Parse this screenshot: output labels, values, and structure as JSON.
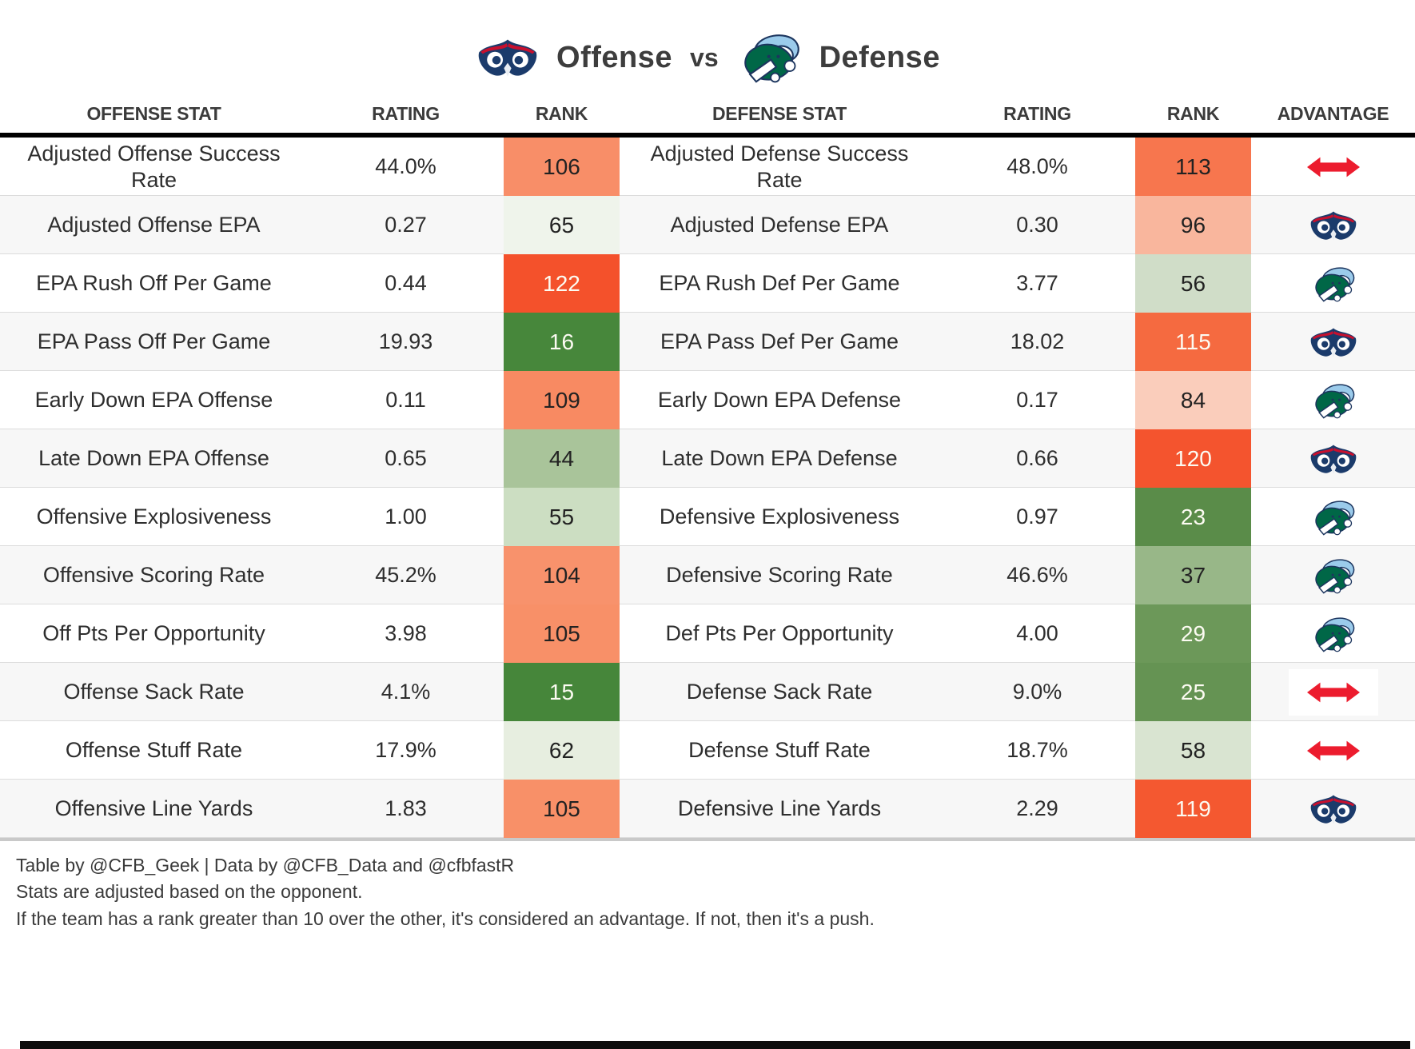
{
  "title": {
    "left_team": "FAU Owls",
    "left_label": "Offense",
    "vs_label": "vs",
    "right_team": "Tulane Green Wave",
    "right_label": "Defense"
  },
  "chart_data": {
    "type": "table",
    "title": "FAU Offense vs Tulane Defense",
    "columns": [
      "OFFENSE STAT",
      "RATING",
      "RANK",
      "DEFENSE STAT",
      "RATING",
      "RANK",
      "ADVANTAGE"
    ],
    "rows": [
      {
        "offense_stat": "Adjusted Offense Success Rate",
        "offense_rating": "44.0%",
        "offense_rank": "106",
        "offense_rank_bg": "#F88E68",
        "offense_rank_fg": "#222222",
        "defense_stat": "Adjusted Defense Success Rate",
        "defense_rating": "48.0%",
        "defense_rank": "113",
        "defense_rank_bg": "#F7764E",
        "defense_rank_fg": "#222222",
        "advantage": "push",
        "advantage_label": "Push"
      },
      {
        "offense_stat": "Adjusted Offense EPA",
        "offense_rating": "0.27",
        "offense_rank": "65",
        "offense_rank_bg": "#EFF4EB",
        "offense_rank_fg": "#222222",
        "defense_stat": "Adjusted Defense EPA",
        "defense_rating": "0.30",
        "defense_rank": "96",
        "defense_rank_bg": "#F9B69D",
        "defense_rank_fg": "#222222",
        "advantage": "fau",
        "advantage_label": "FAU Owls"
      },
      {
        "offense_stat": "EPA Rush Off Per Game",
        "offense_rating": "0.44",
        "offense_rank": "122",
        "offense_rank_bg": "#F4512B",
        "offense_rank_fg": "#FCFBF2",
        "defense_stat": "EPA Rush Def Per Game",
        "defense_rating": "3.77",
        "defense_rank": "56",
        "defense_rank_bg": "#D0DDC8",
        "defense_rank_fg": "#222222",
        "advantage": "tulane",
        "advantage_label": "Tulane Green Wave"
      },
      {
        "offense_stat": "EPA Pass Off Per Game",
        "offense_rating": "19.93",
        "offense_rank": "16",
        "offense_rank_bg": "#47873B",
        "offense_rank_fg": "#FCFBF2",
        "defense_stat": "EPA Pass Def Per Game",
        "defense_rating": "18.02",
        "defense_rank": "115",
        "defense_rank_bg": "#F56A40",
        "defense_rank_fg": "#FCFBF2",
        "advantage": "fau",
        "advantage_label": "FAU Owls"
      },
      {
        "offense_stat": "Early Down EPA Offense",
        "offense_rating": "0.11",
        "offense_rank": "109",
        "offense_rank_bg": "#F88A62",
        "offense_rank_fg": "#222222",
        "defense_stat": "Early Down EPA Defense",
        "defense_rating": "0.17",
        "defense_rank": "84",
        "defense_rank_bg": "#FACDBB",
        "defense_rank_fg": "#222222",
        "advantage": "tulane",
        "advantage_label": "Tulane Green Wave"
      },
      {
        "offense_stat": "Late Down EPA Offense",
        "offense_rating": "0.65",
        "offense_rank": "44",
        "offense_rank_bg": "#A9C49A",
        "offense_rank_fg": "#222222",
        "defense_stat": "Late Down EPA Defense",
        "defense_rating": "0.66",
        "defense_rank": "120",
        "defense_rank_bg": "#F4542E",
        "defense_rank_fg": "#FCFBF2",
        "advantage": "fau",
        "advantage_label": "FAU Owls"
      },
      {
        "offense_stat": "Offensive Explosiveness",
        "offense_rating": "1.00",
        "offense_rank": "55",
        "offense_rank_bg": "#CCDEC2",
        "offense_rank_fg": "#222222",
        "defense_stat": "Defensive Explosiveness",
        "defense_rating": "0.97",
        "defense_rank": "23",
        "defense_rank_bg": "#5A8C49",
        "defense_rank_fg": "#FCFBF2",
        "advantage": "tulane",
        "advantage_label": "Tulane Green Wave"
      },
      {
        "offense_stat": "Offensive Scoring Rate",
        "offense_rating": "45.2%",
        "offense_rank": "104",
        "offense_rank_bg": "#F8926C",
        "offense_rank_fg": "#222222",
        "defense_stat": "Defensive Scoring Rate",
        "defense_rating": "46.6%",
        "defense_rank": "37",
        "defense_rank_bg": "#98B788",
        "defense_rank_fg": "#222222",
        "advantage": "tulane",
        "advantage_label": "Tulane Green Wave"
      },
      {
        "offense_stat": "Off Pts Per Opportunity",
        "offense_rating": "3.98",
        "offense_rank": "105",
        "offense_rank_bg": "#F89068",
        "offense_rank_fg": "#222222",
        "defense_stat": "Def Pts Per Opportunity",
        "defense_rating": "4.00",
        "defense_rank": "29",
        "defense_rank_bg": "#6C9859",
        "defense_rank_fg": "#FCFBF2",
        "advantage": "tulane",
        "advantage_label": "Tulane Green Wave"
      },
      {
        "offense_stat": "Offense Sack Rate",
        "offense_rating": "4.1%",
        "offense_rank": "15",
        "offense_rank_bg": "#46863A",
        "offense_rank_fg": "#FCFBF2",
        "defense_stat": "Defense Sack Rate",
        "defense_rating": "9.0%",
        "defense_rank": "25",
        "defense_rank_bg": "#659353",
        "defense_rank_fg": "#FCFBF2",
        "advantage": "push",
        "advantage_label": "Push"
      },
      {
        "offense_stat": "Offense Stuff Rate",
        "offense_rating": "17.9%",
        "offense_rank": "62",
        "offense_rank_bg": "#E7EEE0",
        "offense_rank_fg": "#222222",
        "defense_stat": "Defense Stuff Rate",
        "defense_rating": "18.7%",
        "defense_rank": "58",
        "defense_rank_bg": "#D9E4D1",
        "defense_rank_fg": "#222222",
        "advantage": "push",
        "advantage_label": "Push"
      },
      {
        "offense_stat": "Offensive Line Yards",
        "offense_rating": "1.83",
        "offense_rank": "105",
        "offense_rank_bg": "#F89068",
        "offense_rank_fg": "#222222",
        "defense_stat": "Defensive Line Yards",
        "defense_rating": "2.29",
        "defense_rank": "119",
        "defense_rank_bg": "#F45830",
        "defense_rank_fg": "#FCFBF2",
        "advantage": "fau",
        "advantage_label": "FAU Owls"
      }
    ]
  },
  "footer": {
    "credit": "Table by @CFB_Geek | Data by @CFB_Data and @cfbfastR",
    "note1": "Stats are adjusted based on the opponent.",
    "note2": "If the team has a rank greater than 10 over the other, it's considered an advantage. If not, then it's a push."
  },
  "colors": {
    "push_arrow_red": "#EC1C2E",
    "fau_navy": "#1B3B6B",
    "fau_red": "#C8102E",
    "tulane_green": "#006747",
    "tulane_sky": "#9BCBEB",
    "best_rank_green": "#46863A",
    "worst_rank_orange": "#F4512B",
    "header_divider_black": "#000000",
    "table_bottom_gray": "#C9C9C9",
    "row_stripe_gray": "#F7F7F7"
  }
}
